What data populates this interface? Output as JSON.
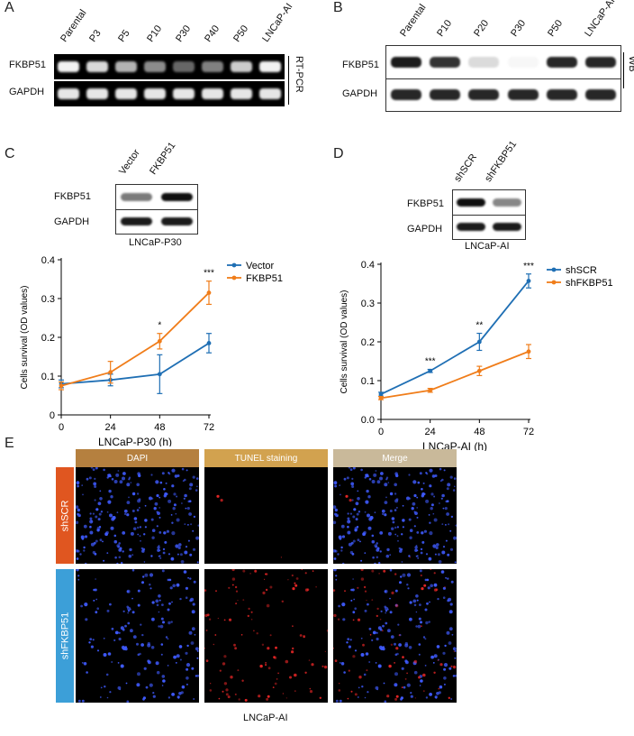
{
  "panels": {
    "A": {
      "letter": "A",
      "lanes": [
        "Parental",
        "P3",
        "P5",
        "P10",
        "P30",
        "P40",
        "P50",
        "LNCaP-AI"
      ],
      "rows": [
        "FKBP51",
        "GAPDH"
      ],
      "side_label": "RT-PCR",
      "band_intensity": {
        "FKBP51": [
          0.95,
          0.85,
          0.7,
          0.55,
          0.4,
          0.5,
          0.8,
          0.95
        ],
        "GAPDH": [
          0.9,
          0.9,
          0.9,
          0.9,
          0.9,
          0.9,
          0.9,
          0.9
        ]
      }
    },
    "B": {
      "letter": "B",
      "lanes": [
        "Parental",
        "P10",
        "P20",
        "P30",
        "P50",
        "LNCaP-AI"
      ],
      "rows": [
        "FKBP51",
        "GAPDH"
      ],
      "side_label": "WB",
      "band_intensity": {
        "FKBP51": [
          0.95,
          0.85,
          0.15,
          0.03,
          0.9,
          0.9
        ],
        "GAPDH": [
          0.9,
          0.9,
          0.9,
          0.9,
          0.9,
          0.9
        ]
      }
    },
    "C": {
      "letter": "C",
      "lanes": [
        "Vector",
        "FKBP51"
      ],
      "rows": [
        "FKBP51",
        "GAPDH"
      ],
      "caption": "LNCaP-P30",
      "band_intensity": {
        "FKBP51": [
          0.55,
          1.0
        ],
        "GAPDH": [
          0.95,
          0.95
        ]
      }
    },
    "D": {
      "letter": "D",
      "lanes": [
        "shSCR",
        "shFKBP51"
      ],
      "rows": [
        "FKBP51",
        "GAPDH"
      ],
      "caption": "LNCaP-AI",
      "band_intensity": {
        "FKBP51": [
          1.0,
          0.5
        ],
        "GAPDH": [
          0.95,
          0.95
        ]
      }
    },
    "E": {
      "letter": "E",
      "columns": [
        "DAPI",
        "TUNEL staining",
        "Merge"
      ],
      "column_colors": [
        "#b5803f",
        "#d2a24f",
        "#c9b99a"
      ],
      "rows": [
        "shSCR",
        "shFKBP51"
      ],
      "row_colors": [
        "#e05620",
        "#3c9fd8"
      ],
      "caption": "LNCaP-AI"
    }
  },
  "chart_data": [
    {
      "type": "line",
      "panel": "C",
      "xlabel": "LNCaP-P30 (h)",
      "ylabel": "Cells survival (OD values)",
      "x": [
        0,
        24,
        48,
        72
      ],
      "xticks": [
        "0",
        "24",
        "48",
        "72"
      ],
      "ylim": [
        0,
        0.4
      ],
      "yticks": [
        "0",
        "0.1",
        "0.2",
        "0.3",
        "0.4"
      ],
      "series": [
        {
          "name": "Vector",
          "color": "#1f6fb4",
          "values": [
            0.08,
            0.09,
            0.105,
            0.185
          ],
          "errors": [
            0.01,
            0.015,
            0.05,
            0.025
          ]
        },
        {
          "name": "FKBP51",
          "color": "#f07d1a",
          "values": [
            0.075,
            0.11,
            0.19,
            0.315
          ],
          "errors": [
            0.01,
            0.028,
            0.02,
            0.03
          ]
        }
      ],
      "significance": [
        "",
        "",
        "*",
        "***"
      ],
      "legend": "top-right"
    },
    {
      "type": "line",
      "panel": "D",
      "xlabel": "LNCaP-AI (h)",
      "ylabel": "Cells survival (OD values)",
      "x": [
        0,
        24,
        48,
        72
      ],
      "xticks": [
        "0",
        "24",
        "48",
        "72"
      ],
      "ylim": [
        0,
        0.4
      ],
      "yticks": [
        "0.0",
        "0.1",
        "0.2",
        "0.3",
        "0.4"
      ],
      "series": [
        {
          "name": "shSCR",
          "color": "#1f6fb4",
          "values": [
            0.065,
            0.125,
            0.2,
            0.357
          ],
          "errors": [
            0.005,
            0.004,
            0.022,
            0.018
          ]
        },
        {
          "name": "shFKBP51",
          "color": "#f07d1a",
          "values": [
            0.055,
            0.075,
            0.125,
            0.175
          ],
          "errors": [
            0.004,
            0.005,
            0.012,
            0.018
          ]
        }
      ],
      "significance": [
        "",
        "***",
        "**",
        "***"
      ],
      "legend": "top-right"
    }
  ]
}
